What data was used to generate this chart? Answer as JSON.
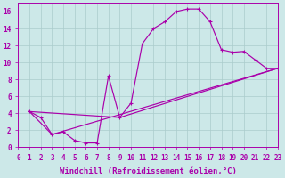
{
  "xlabel": "Windchill (Refroidissement éolien,°C)",
  "bg_color": "#cce8e8",
  "line_color": "#aa00aa",
  "grid_color": "#aacccc",
  "xlim": [
    0,
    23
  ],
  "ylim": [
    0,
    17
  ],
  "xticks": [
    0,
    1,
    2,
    3,
    4,
    5,
    6,
    7,
    8,
    9,
    10,
    11,
    12,
    13,
    14,
    15,
    16,
    17,
    18,
    19,
    20,
    21,
    22,
    23
  ],
  "yticks": [
    0,
    2,
    4,
    6,
    8,
    10,
    12,
    14,
    16
  ],
  "series": [
    {
      "x": [
        1,
        2,
        3,
        4,
        5,
        6,
        7,
        8,
        9,
        10,
        11,
        12,
        13,
        14,
        15,
        16,
        17,
        18,
        19,
        20,
        21,
        22,
        23
      ],
      "y": [
        4.2,
        3.5,
        1.5,
        1.8,
        0.8,
        0.5,
        0.5,
        8.4,
        3.5,
        5.2,
        12.2,
        14.0,
        14.8,
        16.0,
        16.3,
        16.3,
        14.8,
        11.5,
        11.2,
        11.3,
        10.3,
        9.3,
        9.3
      ],
      "markers": true
    },
    {
      "x": [
        1,
        3,
        23
      ],
      "y": [
        4.2,
        1.5,
        9.3
      ],
      "markers": false
    },
    {
      "x": [
        1,
        9,
        23
      ],
      "y": [
        4.2,
        3.5,
        9.3
      ],
      "markers": false
    }
  ],
  "font_family": "monospace",
  "tick_fontsize": 5.5,
  "label_fontsize": 6.5,
  "lw": 0.85
}
